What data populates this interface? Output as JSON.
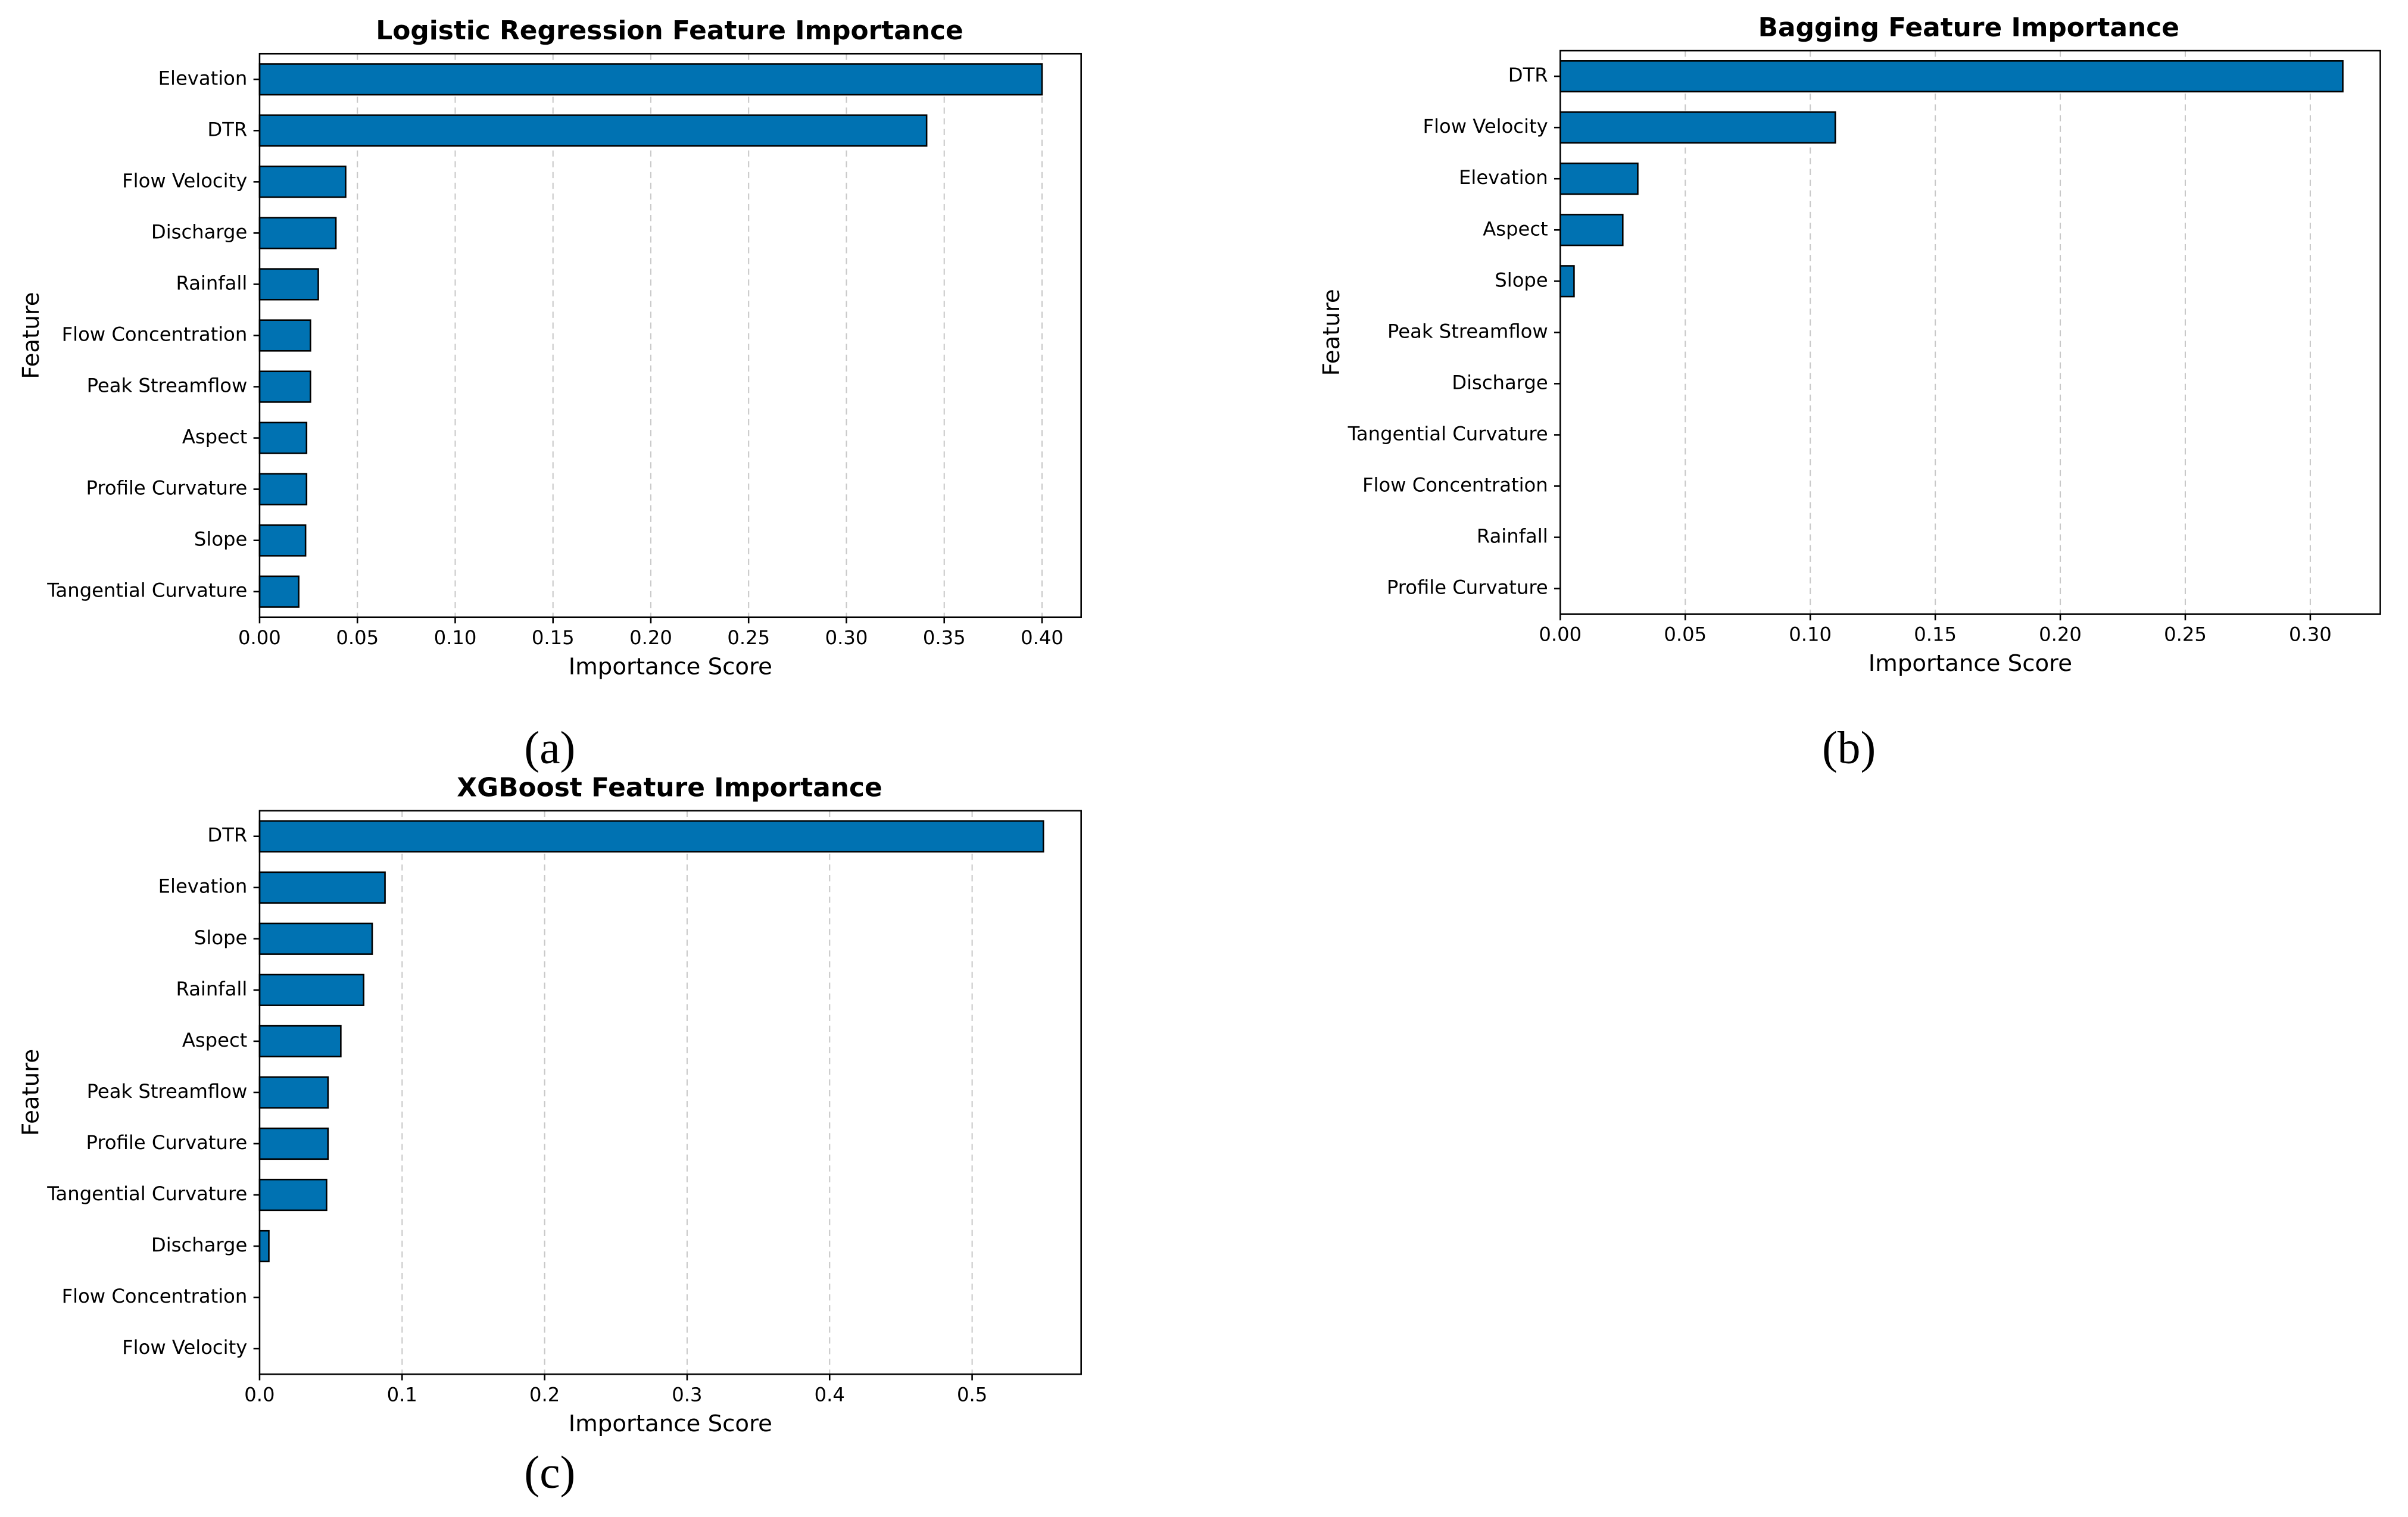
{
  "chart_data": [
    {
      "type": "barh",
      "title": "Logistic Regression Feature Importance",
      "x_label": "Importance Score",
      "y_label": "Feature",
      "panel_label": "(a)",
      "categories": [
        "Elevation",
        "DTR",
        "Flow Velocity",
        "Discharge",
        "Rainfall",
        "Flow Concentration",
        "Peak Streamflow",
        "Aspect",
        "Profile Curvature",
        "Slope",
        "Tangential Curvature"
      ],
      "values": [
        0.4,
        0.341,
        0.044,
        0.039,
        0.03,
        0.026,
        0.026,
        0.024,
        0.024,
        0.0235,
        0.02
      ],
      "color": "#0072b2",
      "edgecolor": "#000000",
      "grid": true,
      "xlim": [
        0,
        0.42
      ],
      "xticks": [
        {
          "value": 0,
          "label": "0.00"
        },
        0.05,
        {
          "value": 0.1,
          "label": "0.10"
        },
        0.15,
        {
          "value": 0.2,
          "label": "0.20"
        },
        0.25,
        {
          "value": 0.3,
          "label": "0.30"
        },
        0.35,
        {
          "value": 0.4,
          "label": "0.40"
        }
      ]
    },
    {
      "type": "barh",
      "title": "Bagging Feature Importance",
      "x_label": "Importance Score",
      "y_label": "Feature",
      "panel_label": "(b)",
      "categories": [
        "DTR",
        "Flow Velocity",
        "Elevation",
        "Aspect",
        "Slope",
        "Peak Streamflow",
        "Discharge",
        "Tangential Curvature",
        "Flow Concentration",
        "Rainfall",
        "Profile Curvature"
      ],
      "values": [
        0.313,
        0.11,
        0.031,
        0.025,
        0.0055,
        0,
        0,
        0,
        0,
        0,
        0
      ],
      "color": "#0072b2",
      "edgecolor": "#000000",
      "grid": true,
      "xlim": [
        0,
        0.328
      ],
      "xticks": [
        {
          "value": 0,
          "label": "0.00"
        },
        0.05,
        {
          "value": 0.1,
          "label": "0.10"
        },
        0.15,
        {
          "value": 0.2,
          "label": "0.20"
        },
        0.25,
        {
          "value": 0.3,
          "label": "0.30"
        }
      ]
    },
    {
      "type": "barh",
      "title": "XGBoost Feature Importance",
      "x_label": "Importance Score",
      "y_label": "Feature",
      "panel_label": "(c)",
      "categories": [
        "DTR",
        "Elevation",
        "Slope",
        "Rainfall",
        "Aspect",
        "Peak Streamflow",
        "Profile Curvature",
        "Tangential Curvature",
        "Discharge",
        "Flow Concentration",
        "Flow Velocity"
      ],
      "values": [
        0.55,
        0.088,
        0.079,
        0.073,
        0.057,
        0.048,
        0.048,
        0.047,
        0.0065,
        0,
        0
      ],
      "color": "#0072b2",
      "edgecolor": "#000000",
      "grid": true,
      "xlim": [
        0,
        0.5765
      ],
      "xticks": [
        {
          "value": 0,
          "label": "0.0"
        },
        0.1,
        0.2,
        0.3,
        0.4,
        0.5
      ]
    }
  ]
}
